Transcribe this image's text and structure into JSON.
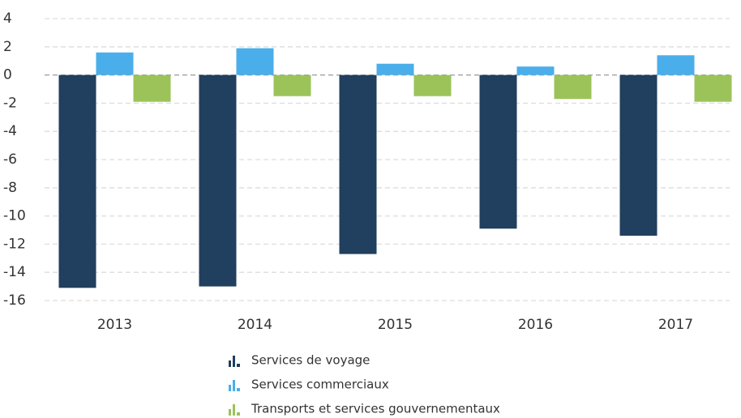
{
  "chart_data": {
    "type": "bar",
    "categories": [
      "2013",
      "2014",
      "2015",
      "2016",
      "2017"
    ],
    "series": [
      {
        "name": "Services de voyage",
        "color": "#213f5e",
        "values": [
          -15.1,
          -15.0,
          -12.7,
          -10.9,
          -11.4
        ]
      },
      {
        "name": "Services commerciaux",
        "color": "#4aaeea",
        "values": [
          1.6,
          1.9,
          0.8,
          0.6,
          1.4
        ]
      },
      {
        "name": "Transports et services gouvernementaux",
        "color": "#9bc35a",
        "values": [
          -1.9,
          -1.5,
          -1.5,
          -1.7,
          -1.9
        ]
      }
    ],
    "ylim": [
      -16,
      4
    ],
    "yticks": [
      -16,
      -14,
      -12,
      -10,
      -8,
      -6,
      -4,
      -2,
      0,
      2,
      4
    ],
    "grid": true
  }
}
